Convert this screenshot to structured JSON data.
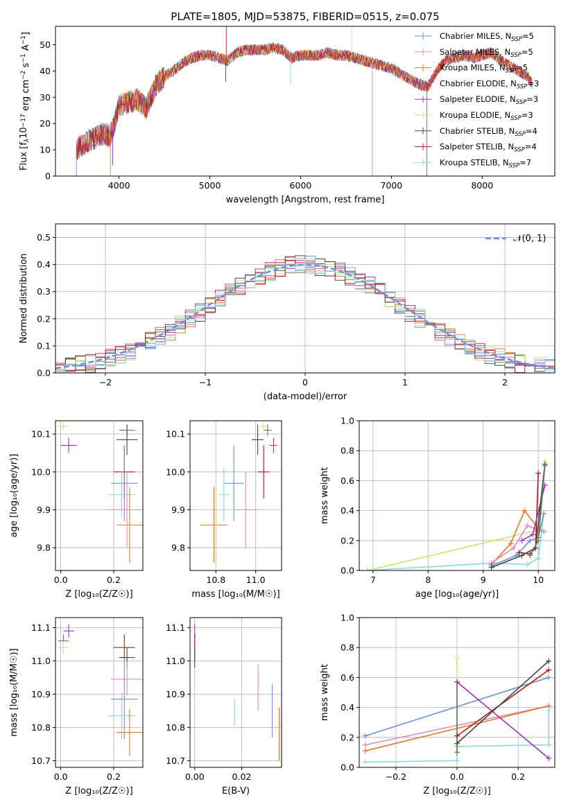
{
  "colors": {
    "Chabrier MILES": "#6b8fd8",
    "Salpeter MILES": "#e088c0",
    "Kroupa MILES": "#e0762a",
    "Chabrier ELODIE": "#5a7a5a",
    "Salpeter ELODIE": "#9b30b8",
    "Kroupa ELODIE": "#d8e070",
    "Chabrier STELIB": "#444444",
    "Salpeter STELIB": "#b01818",
    "Kroupa STELIB": "#8ad8e0"
  },
  "chart_data": [
    {
      "id": "spectrum",
      "type": "line",
      "title": "PLATE=1805, MJD=53875, FIBERID=0515, z=0.075",
      "xlabel": "wavelength [Angstrom, rest frame]",
      "ylabel_parts": [
        "Flux [f",
        "λ",
        "10",
        "−17",
        " erg cm",
        "−2",
        " s",
        "−1",
        " A",
        "−1",
        "]"
      ],
      "xlim": [
        3300,
        8800
      ],
      "ylim": [
        0,
        57
      ],
      "xticks": [
        4000,
        5000,
        6000,
        7000,
        8000
      ],
      "yticks": [
        0,
        10,
        20,
        30,
        40,
        50
      ],
      "grid": false,
      "legend_position": "top-right",
      "continuum": {
        "x": [
          3530,
          3600,
          3700,
          3800,
          3850,
          3900,
          3950,
          4000,
          4100,
          4200,
          4300,
          4400,
          4500,
          4600,
          4700,
          4800,
          4900,
          5000,
          5100,
          5200,
          5300,
          5400,
          5500,
          5600,
          5700,
          5800,
          5900,
          6000,
          6100,
          6200,
          6300,
          6400,
          6500,
          6600,
          6700,
          6800,
          6900,
          7000,
          7100,
          7200,
          7300,
          7400,
          7500,
          7600,
          7700,
          7800,
          7900,
          8000,
          8100,
          8200,
          8300,
          8400,
          8500,
          8550
        ],
        "y": [
          10,
          12,
          14,
          16,
          16,
          15,
          20,
          27,
          28,
          29,
          26,
          34,
          38,
          40,
          43,
          45,
          46,
          46,
          45,
          44,
          47,
          48,
          48,
          48,
          49,
          48,
          45,
          46,
          46,
          46,
          47,
          46,
          46,
          45,
          44,
          43,
          42,
          41,
          39,
          37,
          35,
          34,
          40,
          44,
          45,
          46,
          45,
          46,
          47,
          44,
          42,
          40,
          38,
          35
        ]
      },
      "series": [
        {
          "name": "Chabrier MILES",
          "nssp": "5",
          "marker": "+"
        },
        {
          "name": "Salpeter MILES",
          "nssp": "5",
          "marker": "+"
        },
        {
          "name": "Kroupa MILES",
          "nssp": "5",
          "marker": "+"
        },
        {
          "name": "Chabrier ELODIE",
          "nssp": "3",
          "marker": "+"
        },
        {
          "name": "Salpeter ELODIE",
          "nssp": "3",
          "marker": "+"
        },
        {
          "name": "Kroupa ELODIE",
          "nssp": "3",
          "marker": "+"
        },
        {
          "name": "Chabrier STELIB",
          "nssp": "4",
          "marker": "+"
        },
        {
          "name": "Salpeter STELIB",
          "nssp": "4",
          "marker": "+"
        },
        {
          "name": "Kroupa STELIB",
          "nssp": "7",
          "marker": "+"
        }
      ],
      "nssp_sub": "SSP",
      "nssp_prefix": "N"
    },
    {
      "id": "residuals",
      "type": "histogram",
      "xlabel": "(data-model)/error",
      "ylabel": "Normed distribution",
      "xlim": [
        -2.5,
        2.5
      ],
      "ylim": [
        0,
        0.55
      ],
      "xticks": [
        -2,
        -1,
        0,
        1,
        2
      ],
      "xtick_labels": [
        "−2",
        "−1",
        "0",
        "1",
        "2"
      ],
      "yticks": [
        0.0,
        0.1,
        0.2,
        0.3,
        0.4,
        0.5
      ],
      "ytick_labels": [
        "0.0",
        "0.1",
        "0.2",
        "0.3",
        "0.4",
        "0.5"
      ],
      "grid": true,
      "bin_width": 0.1,
      "reference_label": "𝒩(0, 1)",
      "reference_color": "#6b8fd8",
      "legend_position": "top-right"
    },
    {
      "id": "age-vs-z",
      "type": "errorbar",
      "xlabel": "Z [log₁₀(Z/Z☉)]",
      "ylabel": "age  [log₁₀(age/yr)]",
      "xlim": [
        -0.02,
        0.31
      ],
      "ylim": [
        9.74,
        10.135
      ],
      "xticks": [
        0.0,
        0.2
      ],
      "xtick_labels": [
        "0.0",
        "0.2"
      ],
      "yticks": [
        9.8,
        9.9,
        10.0,
        10.1
      ],
      "ytick_labels": [
        "9.8",
        "9.9",
        "10.0",
        "10.1"
      ],
      "grid": true,
      "points": [
        {
          "s": "Kroupa ELODIE",
          "x": 0.01,
          "y": 10.12,
          "xe": 0.02,
          "ye": 0.01
        },
        {
          "s": "Salpeter ELODIE",
          "x": 0.03,
          "y": 10.07,
          "xe": 0.03,
          "ye": 0.02
        },
        {
          "s": "Chabrier ELODIE",
          "x": 0.25,
          "y": 10.11,
          "xe": 0.03,
          "ye": 0.015
        },
        {
          "s": "Chabrier STELIB",
          "x": 0.25,
          "y": 10.085,
          "xe": 0.04,
          "ye": 0.04
        },
        {
          "s": "Salpeter STELIB",
          "x": 0.24,
          "y": 10.0,
          "xe": 0.04,
          "ye": 0.07
        },
        {
          "s": "Chabrier MILES",
          "x": 0.24,
          "y": 9.97,
          "xe": 0.05,
          "ye": 0.1
        },
        {
          "s": "Kroupa STELIB",
          "x": 0.23,
          "y": 9.94,
          "xe": 0.05,
          "ye": 0.06
        },
        {
          "s": "Salpeter MILES",
          "x": 0.25,
          "y": 9.9,
          "xe": 0.07,
          "ye": 0.1
        },
        {
          "s": "Kroupa MILES",
          "x": 0.26,
          "y": 9.86,
          "xe": 0.05,
          "ye": 0.1
        }
      ]
    },
    {
      "id": "age-vs-mass",
      "type": "errorbar",
      "xlabel": "mass [log₁₀(M/M☉)]",
      "ylabel": "",
      "xlim": [
        10.67,
        11.13
      ],
      "ylim": [
        9.74,
        10.135
      ],
      "xticks": [
        10.8,
        11.0
      ],
      "xtick_labels": [
        "10.8",
        "11.0"
      ],
      "yticks": [
        9.8,
        9.9,
        10.0,
        10.1
      ],
      "ytick_labels": [
        "9.8",
        "9.9",
        "10.0",
        "10.1"
      ],
      "grid": true,
      "points": [
        {
          "s": "Kroupa ELODIE",
          "x": 11.04,
          "y": 10.12,
          "xe": 0.02,
          "ye": 0.01
        },
        {
          "s": "Chabrier ELODIE",
          "x": 11.06,
          "y": 10.11,
          "xe": 0.02,
          "ye": 0.015
        },
        {
          "s": "Salpeter ELODIE",
          "x": 11.09,
          "y": 10.07,
          "xe": 0.02,
          "ye": 0.02
        },
        {
          "s": "Chabrier STELIB",
          "x": 11.01,
          "y": 10.085,
          "xe": 0.03,
          "ye": 0.04
        },
        {
          "s": "Salpeter STELIB",
          "x": 11.04,
          "y": 10.0,
          "xe": 0.03,
          "ye": 0.07
        },
        {
          "s": "Chabrier MILES",
          "x": 10.89,
          "y": 9.97,
          "xe": 0.05,
          "ye": 0.1
        },
        {
          "s": "Kroupa STELIB",
          "x": 10.84,
          "y": 9.94,
          "xe": 0.03,
          "ye": 0.07
        },
        {
          "s": "Salpeter MILES",
          "x": 10.95,
          "y": 9.9,
          "xe": 0.06,
          "ye": 0.1
        },
        {
          "s": "Kroupa MILES",
          "x": 10.79,
          "y": 9.86,
          "xe": 0.07,
          "ye": 0.1
        }
      ]
    },
    {
      "id": "mass-weight-vs-age",
      "type": "line",
      "xlabel": "age  [log₁₀(age/yr)]",
      "ylabel": "mass weight",
      "xlim": [
        6.75,
        10.3
      ],
      "ylim": [
        0,
        1.0
      ],
      "xticks": [
        7,
        8,
        9,
        10
      ],
      "xtick_labels": [
        "7",
        "8",
        "9",
        "10"
      ],
      "yticks": [
        0.0,
        0.2,
        0.4,
        0.6,
        0.8,
        1.0
      ],
      "ytick_labels": [
        "0.0",
        "0.2",
        "0.4",
        "0.6",
        "0.8",
        "1.0"
      ],
      "grid": true,
      "series": [
        {
          "s": "Kroupa ELODIE",
          "x": [
            6.9,
            10.0,
            10.12
          ],
          "y": [
            0.0,
            0.27,
            0.73
          ]
        },
        {
          "s": "Kroupa STELIB",
          "x": [
            6.9,
            9.2,
            9.8,
            10.0,
            10.1
          ],
          "y": [
            0.0,
            0.05,
            0.04,
            0.08,
            0.38
          ]
        },
        {
          "s": "Kroupa MILES",
          "x": [
            9.15,
            9.5,
            9.75,
            10.0,
            10.1
          ],
          "y": [
            0.04,
            0.18,
            0.4,
            0.28,
            0.26
          ]
        },
        {
          "s": "Salpeter MILES",
          "x": [
            9.15,
            9.55,
            9.8,
            10.0,
            10.1
          ],
          "y": [
            0.05,
            0.15,
            0.3,
            0.27,
            0.26
          ]
        },
        {
          "s": "Chabrier MILES",
          "x": [
            9.15,
            9.6,
            9.85,
            10.0,
            10.1
          ],
          "y": [
            0.03,
            0.1,
            0.2,
            0.22,
            0.38
          ]
        },
        {
          "s": "Salpeter STELIB",
          "x": [
            9.65,
            9.85,
            9.95,
            10.0
          ],
          "y": [
            0.12,
            0.11,
            0.15,
            0.65
          ]
        },
        {
          "s": "Salpeter ELODIE",
          "x": [
            9.7,
            9.9,
            10.12
          ],
          "y": [
            0.2,
            0.24,
            0.57
          ]
        },
        {
          "s": "Chabrier STELIB",
          "x": [
            9.15,
            9.7,
            9.95,
            10.12
          ],
          "y": [
            0.02,
            0.1,
            0.15,
            0.71
          ]
        },
        {
          "s": "Chabrier ELODIE",
          "x": [
            9.85,
            10.0,
            10.12
          ],
          "y": [
            0.1,
            0.2,
            0.7
          ]
        }
      ]
    },
    {
      "id": "mass-vs-z",
      "type": "errorbar",
      "xlabel": "Z [log₁₀(Z/Z☉)]",
      "ylabel": "mass [log₁₀(M/M☉)]",
      "xlim": [
        -0.02,
        0.31
      ],
      "ylim": [
        10.68,
        11.13
      ],
      "xticks": [
        0.0,
        0.2
      ],
      "xtick_labels": [
        "0.0",
        "0.2"
      ],
      "yticks": [
        10.7,
        10.8,
        10.9,
        11.0,
        11.1
      ],
      "ytick_labels": [
        "10.7",
        "10.8",
        "10.9",
        "11.0",
        "11.1"
      ],
      "grid": true,
      "points": [
        {
          "s": "Salpeter ELODIE",
          "x": 0.03,
          "y": 11.09,
          "xe": 0.02,
          "ye": 0.02
        },
        {
          "s": "Chabrier ELODIE",
          "x": 0.01,
          "y": 11.06,
          "xe": 0.02,
          "ye": 0.02
        },
        {
          "s": "Kroupa ELODIE",
          "x": 0.01,
          "y": 11.04,
          "xe": 0.02,
          "ye": 0.02
        },
        {
          "s": "Salpeter STELIB",
          "x": 0.24,
          "y": 11.04,
          "xe": 0.04,
          "ye": 0.04
        },
        {
          "s": "Chabrier STELIB",
          "x": 0.25,
          "y": 11.01,
          "xe": 0.03,
          "ye": 0.03
        },
        {
          "s": "Salpeter MILES",
          "x": 0.25,
          "y": 10.945,
          "xe": 0.06,
          "ye": 0.05
        },
        {
          "s": "Chabrier MILES",
          "x": 0.24,
          "y": 10.885,
          "xe": 0.05,
          "ye": 0.12
        },
        {
          "s": "Kroupa STELIB",
          "x": 0.23,
          "y": 10.835,
          "xe": 0.05,
          "ye": 0.07
        },
        {
          "s": "Kroupa MILES",
          "x": 0.26,
          "y": 10.785,
          "xe": 0.05,
          "ye": 0.07
        }
      ]
    },
    {
      "id": "mass-vs-ebv",
      "type": "errorbar",
      "xlabel": "E(B-V)",
      "ylabel": "",
      "xlim": [
        -0.002,
        0.037
      ],
      "ylim": [
        10.68,
        11.13
      ],
      "xticks": [
        0.0,
        0.02
      ],
      "xtick_labels": [
        "0.00",
        "0.02"
      ],
      "yticks": [
        10.7,
        10.8,
        10.9,
        11.0,
        11.1
      ],
      "ytick_labels": [
        "10.7",
        "10.8",
        "10.9",
        "11.0",
        "11.1"
      ],
      "grid": true,
      "points": [
        {
          "s": "Salpeter ELODIE",
          "x": 0.0,
          "y": 11.09,
          "xe": 0,
          "ye": 0.02
        },
        {
          "s": "Chabrier ELODIE",
          "x": 0.0,
          "y": 11.06,
          "xe": 0,
          "ye": 0.02
        },
        {
          "s": "Kroupa ELODIE",
          "x": 0.0,
          "y": 11.04,
          "xe": 0,
          "ye": 0.02
        },
        {
          "s": "Salpeter STELIB",
          "x": 0.0,
          "y": 11.04,
          "xe": 0,
          "ye": 0.04
        },
        {
          "s": "Chabrier STELIB",
          "x": 0.0,
          "y": 11.01,
          "xe": 0,
          "ye": 0.03
        },
        {
          "s": "Salpeter MILES",
          "x": 0.027,
          "y": 10.92,
          "xe": 0,
          "ye": 0.07
        },
        {
          "s": "Chabrier MILES",
          "x": 0.033,
          "y": 10.85,
          "xe": 0,
          "ye": 0.08
        },
        {
          "s": "Kroupa STELIB",
          "x": 0.017,
          "y": 10.845,
          "xe": 0,
          "ye": 0.04
        },
        {
          "s": "Kroupa MILES",
          "x": 0.036,
          "y": 10.78,
          "xe": 0,
          "ye": 0.08
        }
      ]
    },
    {
      "id": "mass-weight-vs-z",
      "type": "line",
      "xlabel": "Z [log₁₀(Z/Z☉)]",
      "ylabel": "mass weight",
      "xlim": [
        -0.32,
        0.32
      ],
      "ylim": [
        0,
        1.0
      ],
      "xticks": [
        -0.2,
        0.0,
        0.2
      ],
      "xtick_labels": [
        "−0.2",
        "0.0",
        "0.2"
      ],
      "yticks": [
        0.0,
        0.2,
        0.4,
        0.6,
        0.8,
        1.0
      ],
      "ytick_labels": [
        "0.0",
        "0.2",
        "0.4",
        "0.6",
        "0.8",
        "1.0"
      ],
      "grid": true,
      "series": [
        {
          "s": "Chabrier MILES",
          "x": [
            -0.3,
            0.3
          ],
          "y": [
            0.21,
            0.6
          ]
        },
        {
          "s": "Salpeter MILES",
          "x": [
            -0.3,
            0.3
          ],
          "y": [
            0.15,
            0.41
          ]
        },
        {
          "s": "Kroupa MILES",
          "x": [
            -0.3,
            0.3
          ],
          "y": [
            0.11,
            0.41
          ]
        },
        {
          "s": "Kroupa STELIB",
          "x": [
            -0.3,
            0.0,
            0.0,
            0.3,
            0.3
          ],
          "y": [
            0.035,
            0.045,
            0.14,
            0.15,
            0.38
          ]
        },
        {
          "s": "Kroupa ELODIE",
          "x": [
            0.0,
            0.0
          ],
          "y": [
            0.15,
            0.73
          ]
        },
        {
          "s": "Chabrier ELODIE",
          "x": [
            0.0,
            0.0
          ],
          "y": [
            0.1,
            0.57
          ]
        },
        {
          "s": "Salpeter ELODIE",
          "x": [
            0.0,
            0.3
          ],
          "y": [
            0.57,
            0.06
          ]
        },
        {
          "s": "Salpeter STELIB",
          "x": [
            0.0,
            0.3
          ],
          "y": [
            0.21,
            0.65
          ]
        },
        {
          "s": "Chabrier STELIB",
          "x": [
            0.0,
            0.3
          ],
          "y": [
            0.16,
            0.71
          ]
        }
      ]
    }
  ]
}
